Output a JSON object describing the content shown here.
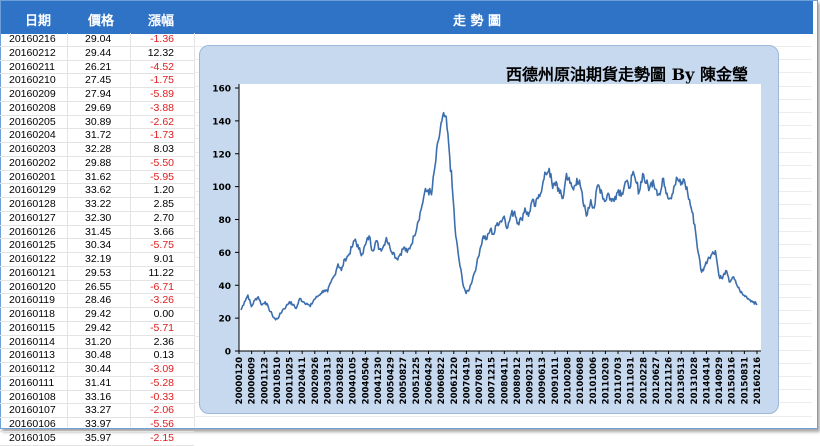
{
  "header": {
    "col_date": "日期",
    "col_price": "價格",
    "col_change": "漲幅",
    "chart_header": "走 勢 圖"
  },
  "table": {
    "rows": [
      {
        "date": "20160216",
        "price": "29.04",
        "change": "-1.36"
      },
      {
        "date": "20160212",
        "price": "29.44",
        "change": "12.32"
      },
      {
        "date": "20160211",
        "price": "26.21",
        "change": "-4.52"
      },
      {
        "date": "20160210",
        "price": "27.45",
        "change": "-1.75"
      },
      {
        "date": "20160209",
        "price": "27.94",
        "change": "-5.89"
      },
      {
        "date": "20160208",
        "price": "29.69",
        "change": "-3.88"
      },
      {
        "date": "20160205",
        "price": "30.89",
        "change": "-2.62"
      },
      {
        "date": "20160204",
        "price": "31.72",
        "change": "-1.73"
      },
      {
        "date": "20160203",
        "price": "32.28",
        "change": "8.03"
      },
      {
        "date": "20160202",
        "price": "29.88",
        "change": "-5.50"
      },
      {
        "date": "20160201",
        "price": "31.62",
        "change": "-5.95"
      },
      {
        "date": "20160129",
        "price": "33.62",
        "change": "1.20"
      },
      {
        "date": "20160128",
        "price": "33.22",
        "change": "2.85"
      },
      {
        "date": "20160127",
        "price": "32.30",
        "change": "2.70"
      },
      {
        "date": "20160126",
        "price": "31.45",
        "change": "3.66"
      },
      {
        "date": "20160125",
        "price": "30.34",
        "change": "-5.75"
      },
      {
        "date": "20160122",
        "price": "32.19",
        "change": "9.01"
      },
      {
        "date": "20160121",
        "price": "29.53",
        "change": "11.22"
      },
      {
        "date": "20160120",
        "price": "26.55",
        "change": "-6.71"
      },
      {
        "date": "20160119",
        "price": "28.46",
        "change": "-3.26"
      },
      {
        "date": "20160118",
        "price": "29.42",
        "change": "0.00"
      },
      {
        "date": "20160115",
        "price": "29.42",
        "change": "-5.71"
      },
      {
        "date": "20160114",
        "price": "31.20",
        "change": "2.36"
      },
      {
        "date": "20160113",
        "price": "30.48",
        "change": "0.13"
      },
      {
        "date": "20160112",
        "price": "30.44",
        "change": "-3.09"
      },
      {
        "date": "20160111",
        "price": "31.41",
        "change": "-5.28"
      },
      {
        "date": "20160108",
        "price": "33.16",
        "change": "-0.33"
      },
      {
        "date": "20160107",
        "price": "33.27",
        "change": "-2.06"
      },
      {
        "date": "20160106",
        "price": "33.97",
        "change": "-5.56"
      },
      {
        "date": "20160105",
        "price": "35.97",
        "change": "-2.15"
      }
    ]
  },
  "colors": {
    "header_bg": "#2f73c6",
    "negative": "#e01b1b",
    "line": "#3c6eae",
    "panel": "#c7d9ef"
  },
  "chart_data": {
    "type": "line",
    "title": "西德州原油期貨走勢圖 By 陳金瑩",
    "xlabel": "",
    "ylabel": "",
    "ylim": [
      0,
      160
    ],
    "yticks": [
      0,
      20,
      40,
      60,
      80,
      100,
      120,
      140,
      160
    ],
    "grid": false,
    "x_tick_labels": [
      "20000120",
      "20000609",
      "20001123",
      "20010510",
      "20011025",
      "20020411",
      "20020926",
      "20030313",
      "20030828",
      "20040105",
      "20040504",
      "20041230",
      "20050429",
      "20050827",
      "20051225",
      "20060424",
      "20060822",
      "20061220",
      "20070419",
      "20070817",
      "20071215",
      "20080411",
      "20080912",
      "20090213",
      "20090613",
      "20091011",
      "20100208",
      "20100608",
      "20101006",
      "20110203",
      "20110703",
      "20111031",
      "20120228",
      "20120627",
      "20121126",
      "20130513",
      "20131028",
      "20140414",
      "20140929",
      "20150316",
      "20150831",
      "20160216"
    ],
    "series": [
      {
        "values": [
          25,
          30,
          34,
          27,
          31,
          33,
          28,
          30,
          26,
          22,
          19,
          21,
          25,
          27,
          30,
          28,
          26,
          32,
          30,
          29,
          27,
          31,
          33,
          35,
          37,
          36,
          42,
          46,
          53,
          49,
          56,
          58,
          63,
          68,
          62,
          59,
          65,
          70,
          61,
          67,
          62,
          63,
          69,
          63,
          60,
          56,
          59,
          63,
          60,
          64,
          70,
          78,
          86,
          96,
          98,
          95,
          112,
          128,
          140,
          143,
          125,
          100,
          70,
          55,
          42,
          35,
          38,
          45,
          52,
          62,
          70,
          68,
          74,
          71,
          78,
          79,
          82,
          75,
          83,
          85,
          78,
          80,
          87,
          82,
          91,
          88,
          95,
          100,
          108,
          111,
          99,
          103,
          96,
          93,
          108,
          102,
          98,
          105,
          100,
          88,
          83,
          92,
          87,
          101,
          98,
          91,
          96,
          91,
          94,
          98,
          96,
          103,
          99,
          107,
          103,
          97,
          108,
          102,
          99,
          104,
          98,
          95,
          105,
          96,
          93,
          100,
          105,
          101,
          104,
          96,
          87,
          77,
          60,
          48,
          52,
          57,
          59,
          61,
          46,
          44,
          49,
          42,
          45,
          41,
          37,
          34,
          33,
          31,
          30,
          28
        ]
      }
    ]
  }
}
